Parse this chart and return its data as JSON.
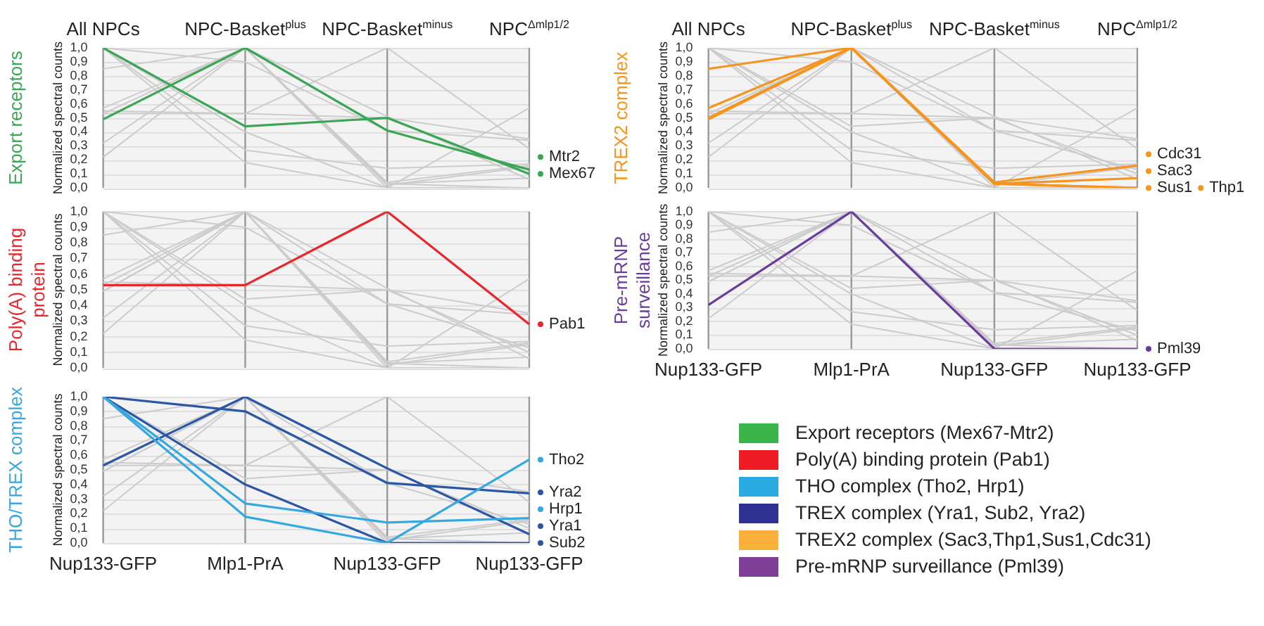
{
  "chart_data": [
    {
      "type": "line",
      "legend": "right",
      "title": "Export receptors",
      "ylabel": "Normalized spectral counts",
      "categories": [
        "All NPCs",
        "NPC-Basket$^{plus}$",
        "NPC-Basket$^{minus}$",
        "NPC$^{Δmlp1/2}$"
      ],
      "ylim": [
        0,
        1
      ],
      "yticks": [
        {
          "value": 0,
          "label": "0,0"
        },
        {
          "value": 0.1,
          "label": "0,1"
        },
        {
          "value": 0.2,
          "label": "0,2"
        },
        {
          "value": 0.3,
          "label": "0,3"
        },
        {
          "value": 0.4,
          "label": "0,4"
        },
        {
          "value": 0.5,
          "label": "0,5"
        },
        {
          "value": 0.6,
          "label": "0,6"
        },
        {
          "value": 0.7,
          "label": "0,7"
        },
        {
          "value": 0.8,
          "label": "0,8"
        },
        {
          "value": 0.9,
          "label": "0,9"
        },
        {
          "value": 1,
          "label": "1,0"
        }
      ],
      "grid": true,
      "series": [
        {
          "name": "Mtr2",
          "color": "#3aa655",
          "values": [
            0.49,
            1.0,
            0.41,
            0.13
          ]
        },
        {
          "name": "Mex67",
          "color": "#3aa655",
          "values": [
            1.0,
            0.44,
            0.5,
            0.1
          ]
        },
        {
          "color": "#cccccc",
          "values": [
            0.53,
            0.53,
            1.0,
            0.28
          ]
        },
        {
          "color": "#cccccc",
          "values": [
            1.0,
            0.18,
            0.0,
            0.57
          ]
        },
        {
          "color": "#cccccc",
          "values": [
            1.0,
            0.27,
            0.14,
            0.17
          ]
        },
        {
          "color": "#cccccc",
          "values": [
            1.0,
            0.9,
            0.41,
            0.34
          ]
        },
        {
          "color": "#cccccc",
          "values": [
            0.53,
            1.0,
            0.51,
            0.06
          ]
        },
        {
          "color": "#cccccc",
          "values": [
            1.0,
            0.4,
            0.0,
            0.0
          ]
        },
        {
          "color": "#cccccc",
          "values": [
            0.57,
            1.0,
            0.04,
            0.16
          ]
        },
        {
          "color": "#cccccc",
          "values": [
            0.85,
            1.0,
            0.03,
            0.07
          ]
        },
        {
          "color": "#cccccc",
          "values": [
            0.49,
            1.0,
            0.03,
            0.0
          ]
        },
        {
          "color": "#cccccc",
          "values": [
            0.32,
            1.0,
            0.0,
            0.0
          ]
        },
        {
          "color": "#cccccc",
          "values": [
            0.22,
            1.0,
            0.02,
            0.15
          ]
        },
        {
          "color": "#cccccc",
          "values": [
            0.55,
            0.53,
            0.5,
            0.35
          ]
        }
      ]
    },
    {
      "type": "line",
      "legend": "right",
      "title": "Poly(A) binding protein",
      "ylabel": "Normalized spectral counts",
      "categories": [
        null,
        null,
        null,
        null
      ],
      "tick_labels": "y",
      "ylim": [
        0,
        1
      ],
      "yticks": [
        {
          "value": 0,
          "label": "0,0"
        },
        {
          "value": 0.1,
          "label": "0,1"
        },
        {
          "value": 0.2,
          "label": "0,2"
        },
        {
          "value": 0.3,
          "label": "0,3"
        },
        {
          "value": 0.4,
          "label": "0,4"
        },
        {
          "value": 0.5,
          "label": "0,5"
        },
        {
          "value": 0.6,
          "label": "0,6"
        },
        {
          "value": 0.7,
          "label": "0,7"
        },
        {
          "value": 0.8,
          "label": "0,8"
        },
        {
          "value": 0.9,
          "label": "0,9"
        },
        {
          "value": 1,
          "label": "1,0"
        }
      ],
      "grid": true,
      "series": [
        {
          "name": "Pab1",
          "color": "#e8262b",
          "values": [
            0.53,
            0.53,
            1.0,
            0.28
          ]
        },
        {
          "color": "#cccccc",
          "values": [
            0.49,
            1.0,
            0.41,
            0.13
          ]
        },
        {
          "color": "#cccccc",
          "values": [
            1.0,
            0.44,
            0.5,
            0.1
          ]
        },
        {
          "color": "#cccccc",
          "values": [
            1.0,
            0.18,
            0.0,
            0.57
          ]
        },
        {
          "color": "#cccccc",
          "values": [
            1.0,
            0.27,
            0.14,
            0.17
          ]
        },
        {
          "color": "#cccccc",
          "values": [
            1.0,
            0.9,
            0.41,
            0.34
          ]
        },
        {
          "color": "#cccccc",
          "values": [
            0.53,
            1.0,
            0.51,
            0.06
          ]
        },
        {
          "color": "#cccccc",
          "values": [
            1.0,
            0.4,
            0.0,
            0.0
          ]
        },
        {
          "color": "#cccccc",
          "values": [
            0.57,
            1.0,
            0.04,
            0.16
          ]
        },
        {
          "color": "#cccccc",
          "values": [
            0.85,
            1.0,
            0.03,
            0.07
          ]
        },
        {
          "color": "#cccccc",
          "values": [
            0.49,
            1.0,
            0.03,
            0.0
          ]
        },
        {
          "color": "#cccccc",
          "values": [
            0.32,
            1.0,
            0.0,
            0.0
          ]
        },
        {
          "color": "#cccccc",
          "values": [
            0.22,
            1.0,
            0.02,
            0.15
          ]
        },
        {
          "color": "#cccccc",
          "values": [
            0.55,
            0.53,
            0.5,
            0.35
          ]
        }
      ]
    },
    {
      "type": "line",
      "legend": "right",
      "title": "THO/TREX complex",
      "ylabel": "Normalized spectral counts",
      "categories": [
        "Nup133-GFP",
        "Mlp1-PrA",
        "Nup133-GFP",
        "Nup133-GFP"
      ],
      "ylim": [
        0,
        1
      ],
      "yticks": [
        {
          "value": 0,
          "label": "0,0"
        },
        {
          "value": 0.1,
          "label": "0,1"
        },
        {
          "value": 0.2,
          "label": "0,2"
        },
        {
          "value": 0.3,
          "label": "0,3"
        },
        {
          "value": 0.4,
          "label": "0,4"
        },
        {
          "value": 0.5,
          "label": "0,5"
        },
        {
          "value": 0.6,
          "label": "0,6"
        },
        {
          "value": 0.7,
          "label": "0,7"
        },
        {
          "value": 0.8,
          "label": "0,8"
        },
        {
          "value": 0.9,
          "label": "0,9"
        },
        {
          "value": 1,
          "label": "1,0"
        }
      ],
      "grid": true,
      "series": [
        {
          "name": "Tho2",
          "color": "#35a8e0",
          "values": [
            1.0,
            0.18,
            0.0,
            0.57
          ]
        },
        {
          "name": "Hrp1",
          "color": "#35a8e0",
          "values": [
            1.0,
            0.27,
            0.14,
            0.17
          ]
        },
        {
          "name": "Yra2",
          "color": "#2b57a5",
          "values": [
            1.0,
            0.9,
            0.41,
            0.34
          ]
        },
        {
          "name": "Yra1",
          "color": "#2b57a5",
          "values": [
            0.53,
            1.0,
            0.51,
            0.06
          ]
        },
        {
          "name": "Sub2",
          "color": "#2b57a5",
          "values": [
            1.0,
            0.4,
            0.0,
            0.0
          ]
        },
        {
          "color": "#cccccc",
          "values": [
            0.49,
            1.0,
            0.41,
            0.13
          ]
        },
        {
          "color": "#cccccc",
          "values": [
            1.0,
            0.44,
            0.5,
            0.1
          ]
        },
        {
          "color": "#cccccc",
          "values": [
            0.53,
            0.53,
            1.0,
            0.28
          ]
        },
        {
          "color": "#cccccc",
          "values": [
            0.57,
            1.0,
            0.04,
            0.16
          ]
        },
        {
          "color": "#cccccc",
          "values": [
            0.85,
            1.0,
            0.03,
            0.07
          ]
        },
        {
          "color": "#cccccc",
          "values": [
            0.49,
            1.0,
            0.03,
            0.0
          ]
        },
        {
          "color": "#cccccc",
          "values": [
            0.32,
            1.0,
            0.0,
            0.0
          ]
        },
        {
          "color": "#cccccc",
          "values": [
            0.22,
            1.0,
            0.02,
            0.15
          ]
        },
        {
          "color": "#cccccc",
          "values": [
            0.55,
            0.53,
            0.5,
            0.35
          ]
        }
      ]
    },
    {
      "type": "line",
      "legend": "right",
      "title": "TREX2 complex",
      "ylabel": "Normalized spectral counts",
      "categories": [
        "All NPCs",
        "NPC-Basket$^{plus}$",
        "NPC-Basket$^{minus}$",
        "NPC$^{Δmlp1/2}$"
      ],
      "ylim": [
        0,
        1
      ],
      "yticks": [
        {
          "value": 0,
          "label": "0,0"
        },
        {
          "value": 0.1,
          "label": "0,1"
        },
        {
          "value": 0.2,
          "label": "0,2"
        },
        {
          "value": 0.3,
          "label": "0,3"
        },
        {
          "value": 0.4,
          "label": "0,4"
        },
        {
          "value": 0.5,
          "label": "0,5"
        },
        {
          "value": 0.6,
          "label": "0,6"
        },
        {
          "value": 0.7,
          "label": "0,7"
        },
        {
          "value": 0.8,
          "label": "0,8"
        },
        {
          "value": 0.9,
          "label": "0,9"
        },
        {
          "value": 1,
          "label": "1,0"
        }
      ],
      "grid": true,
      "series": [
        {
          "name": "Cdc31",
          "color": "#f7941d",
          "values": [
            0.57,
            1.0,
            0.04,
            0.16
          ]
        },
        {
          "name": "Sac3",
          "color": "#f7941d",
          "values": [
            0.85,
            1.0,
            0.03,
            0.07
          ]
        },
        {
          "name": "Sus1",
          "color": "#f7941d",
          "values": [
            0.49,
            1.0,
            0.03,
            0.0
          ]
        },
        {
          "name": "Thp1",
          "color": "#f7941d",
          "values": [
            0.5,
            1.0,
            0.03,
            0.0
          ]
        },
        {
          "color": "#cccccc",
          "values": [
            0.49,
            1.0,
            0.41,
            0.13
          ]
        },
        {
          "color": "#cccccc",
          "values": [
            1.0,
            0.44,
            0.5,
            0.1
          ]
        },
        {
          "color": "#cccccc",
          "values": [
            0.53,
            0.53,
            1.0,
            0.28
          ]
        },
        {
          "color": "#cccccc",
          "values": [
            1.0,
            0.18,
            0.0,
            0.57
          ]
        },
        {
          "color": "#cccccc",
          "values": [
            1.0,
            0.27,
            0.14,
            0.17
          ]
        },
        {
          "color": "#cccccc",
          "values": [
            1.0,
            0.9,
            0.41,
            0.34
          ]
        },
        {
          "color": "#cccccc",
          "values": [
            0.53,
            1.0,
            0.51,
            0.06
          ]
        },
        {
          "color": "#cccccc",
          "values": [
            1.0,
            0.4,
            0.0,
            0.0
          ]
        },
        {
          "color": "#cccccc",
          "values": [
            0.32,
            1.0,
            0.0,
            0.0
          ]
        },
        {
          "color": "#cccccc",
          "values": [
            0.22,
            1.0,
            0.02,
            0.15
          ]
        },
        {
          "color": "#cccccc",
          "values": [
            0.55,
            0.53,
            0.5,
            0.35
          ]
        }
      ]
    },
    {
      "type": "line",
      "legend": "right",
      "title": "Pre-mRNP surveillance",
      "ylabel": "Normalized spectral counts",
      "categories": [
        "Nup133-GFP",
        "Mlp1-PrA",
        "Nup133-GFP",
        "Nup133-GFP"
      ],
      "ylim": [
        0,
        1
      ],
      "yticks": [
        {
          "value": 0,
          "label": "0,0"
        },
        {
          "value": 0.1,
          "label": "0,1"
        },
        {
          "value": 0.2,
          "label": "0,2"
        },
        {
          "value": 0.3,
          "label": "0,3"
        },
        {
          "value": 0.4,
          "label": "0,4"
        },
        {
          "value": 0.5,
          "label": "0,5"
        },
        {
          "value": 0.6,
          "label": "0,6"
        },
        {
          "value": 0.7,
          "label": "0,7"
        },
        {
          "value": 0.8,
          "label": "0,8"
        },
        {
          "value": 0.9,
          "label": "0,9"
        },
        {
          "value": 1,
          "label": "1,0"
        }
      ],
      "grid": true,
      "series": [
        {
          "name": "Pml39",
          "color": "#6a3d9a",
          "values": [
            0.32,
            1.0,
            0.0,
            0.0
          ]
        },
        {
          "color": "#cccccc",
          "values": [
            0.49,
            1.0,
            0.41,
            0.13
          ]
        },
        {
          "color": "#cccccc",
          "values": [
            1.0,
            0.44,
            0.5,
            0.1
          ]
        },
        {
          "color": "#cccccc",
          "values": [
            0.53,
            0.53,
            1.0,
            0.28
          ]
        },
        {
          "color": "#cccccc",
          "values": [
            1.0,
            0.18,
            0.0,
            0.57
          ]
        },
        {
          "color": "#cccccc",
          "values": [
            1.0,
            0.27,
            0.14,
            0.17
          ]
        },
        {
          "color": "#cccccc",
          "values": [
            1.0,
            0.9,
            0.41,
            0.34
          ]
        },
        {
          "color": "#cccccc",
          "values": [
            0.53,
            1.0,
            0.51,
            0.06
          ]
        },
        {
          "color": "#cccccc",
          "values": [
            1.0,
            0.4,
            0.0,
            0.0
          ]
        },
        {
          "color": "#cccccc",
          "values": [
            0.57,
            1.0,
            0.04,
            0.16
          ]
        },
        {
          "color": "#cccccc",
          "values": [
            0.85,
            1.0,
            0.03,
            0.07
          ]
        },
        {
          "color": "#cccccc",
          "values": [
            0.49,
            1.0,
            0.03,
            0.0
          ]
        },
        {
          "color": "#cccccc",
          "values": [
            0.22,
            1.0,
            0.02,
            0.15
          ]
        },
        {
          "color": "#cccccc",
          "values": [
            0.55,
            0.53,
            0.5,
            0.35
          ]
        }
      ]
    },
    {
      "type": "other",
      "categories": [
        "Export receptors (Mex67-Mtr2)",
        "Poly(A) binding protein (Pab1)",
        "THO complex (Tho2, Hrp1)",
        "TREX complex (Yra1, Sub2, Yra2)",
        "TREX2 complex (Sac3,Thp1,Sus1,Cdc31)",
        "Pre-mRNP surveillance (Pml39)"
      ],
      "colors": [
        "#39b54a",
        "#ed1c24",
        "#29abe2",
        "#2e3192",
        "#fbb03b",
        "#7f3f98"
      ]
    }
  ]
}
